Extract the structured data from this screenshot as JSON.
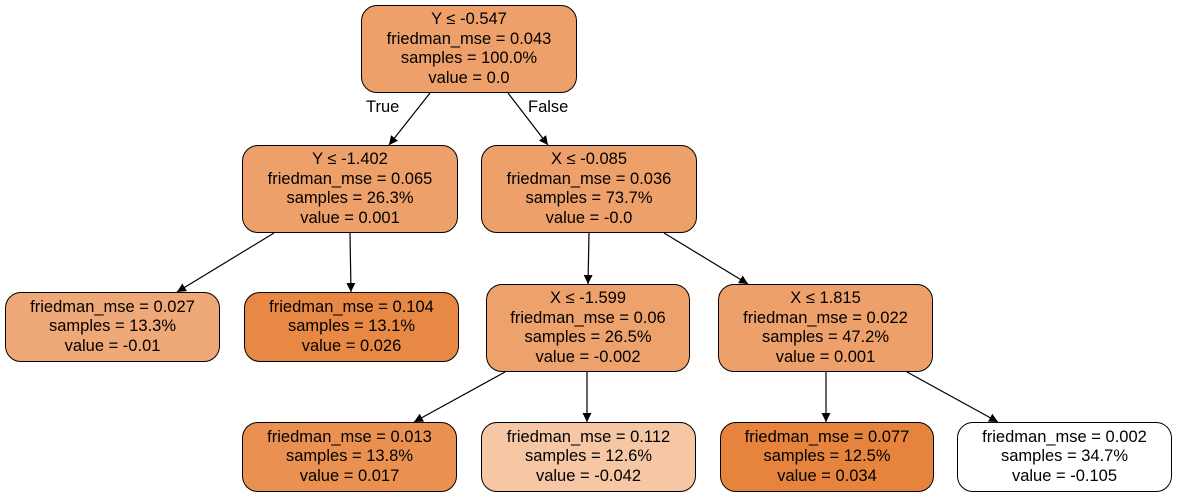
{
  "tree": {
    "nodes": [
      {
        "id": "n0",
        "lines": [
          "Y ≤ -0.547",
          "friedman_mse = 0.043",
          "samples = 100.0%",
          "value = 0.0"
        ],
        "color": "#eda069"
      },
      {
        "id": "n1",
        "lines": [
          "Y ≤ -1.402",
          "friedman_mse = 0.065",
          "samples = 26.3%",
          "value = 0.001"
        ],
        "color": "#eda069"
      },
      {
        "id": "n2",
        "lines": [
          "X ≤ -0.085",
          "friedman_mse = 0.036",
          "samples = 73.7%",
          "value = -0.0"
        ],
        "color": "#eda069"
      },
      {
        "id": "n3",
        "lines": [
          "friedman_mse = 0.027",
          "samples = 13.3%",
          "value = -0.01"
        ],
        "color": "#efa877"
      },
      {
        "id": "n4",
        "lines": [
          "friedman_mse = 0.104",
          "samples = 13.1%",
          "value = 0.026"
        ],
        "color": "#e78945"
      },
      {
        "id": "n5",
        "lines": [
          "X ≤ -1.599",
          "friedman_mse = 0.06",
          "samples = 26.5%",
          "value = -0.002"
        ],
        "color": "#eda26c"
      },
      {
        "id": "n6",
        "lines": [
          "X ≤ 1.815",
          "friedman_mse = 0.022",
          "samples = 47.2%",
          "value = 0.001"
        ],
        "color": "#eda069"
      },
      {
        "id": "n7",
        "lines": [
          "friedman_mse = 0.013",
          "samples = 13.8%",
          "value = 0.017"
        ],
        "color": "#ea9152"
      },
      {
        "id": "n8",
        "lines": [
          "friedman_mse = 0.112",
          "samples = 12.6%",
          "value = -0.042"
        ],
        "color": "#f5c7a4"
      },
      {
        "id": "n9",
        "lines": [
          "friedman_mse = 0.077",
          "samples = 12.5%",
          "value = 0.034"
        ],
        "color": "#e6843e"
      },
      {
        "id": "n10",
        "lines": [
          "friedman_mse = 0.002",
          "samples = 34.7%",
          "value = -0.105"
        ],
        "color": "#ffffff"
      }
    ],
    "edges": [
      {
        "from": "n0",
        "to": "n1",
        "label": "True"
      },
      {
        "from": "n0",
        "to": "n2",
        "label": "False"
      },
      {
        "from": "n1",
        "to": "n3",
        "label": ""
      },
      {
        "from": "n1",
        "to": "n4",
        "label": ""
      },
      {
        "from": "n2",
        "to": "n5",
        "label": ""
      },
      {
        "from": "n2",
        "to": "n6",
        "label": ""
      },
      {
        "from": "n5",
        "to": "n7",
        "label": ""
      },
      {
        "from": "n5",
        "to": "n8",
        "label": ""
      },
      {
        "from": "n6",
        "to": "n9",
        "label": ""
      },
      {
        "from": "n6",
        "to": "n10",
        "label": ""
      }
    ]
  }
}
